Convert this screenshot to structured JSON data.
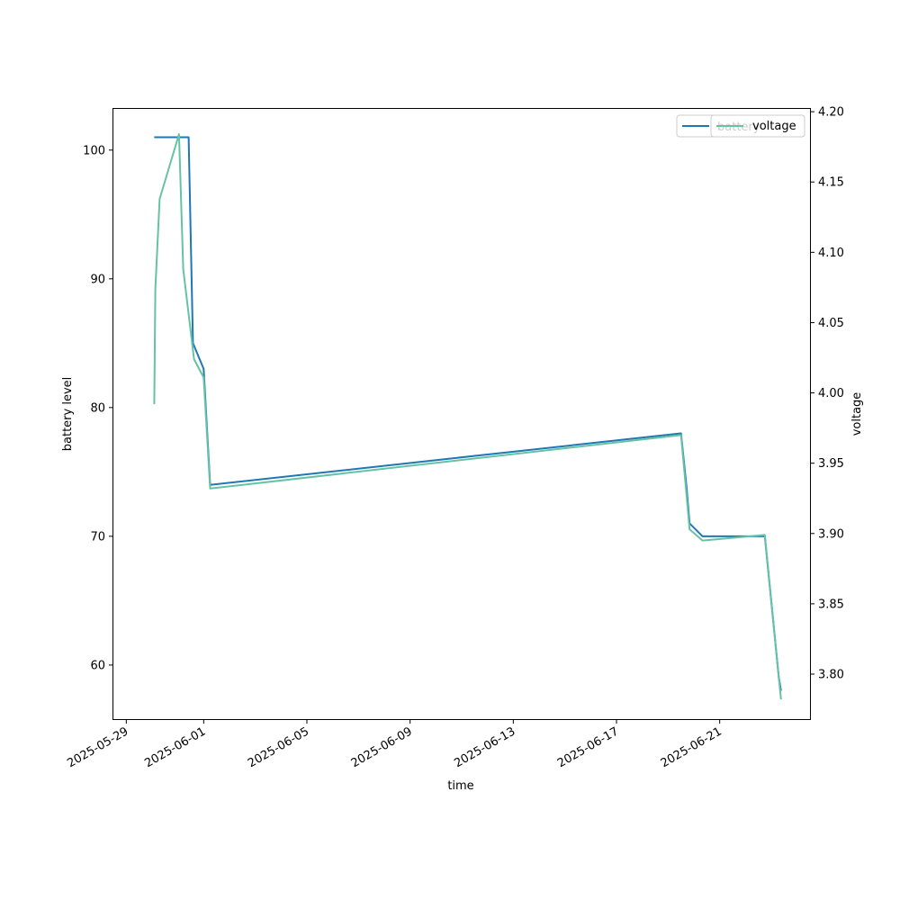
{
  "chart_data": {
    "type": "line",
    "xlabel": "time",
    "ylabel_left": "battery level",
    "ylabel_right": "voltage",
    "xlim": [
      "2025-05-28T12:00",
      "2025-06-24T12:00"
    ],
    "ylim_left": [
      55.8,
      103.2
    ],
    "ylim_right": [
      3.768,
      4.202
    ],
    "x_ticks": [
      "2025-05-29",
      "2025-06-01",
      "2025-06-05",
      "2025-06-09",
      "2025-06-13",
      "2025-06-17",
      "2025-06-21"
    ],
    "y_ticks_left": [
      60,
      70,
      80,
      90,
      100
    ],
    "y_ticks_right": [
      3.8,
      3.85,
      3.9,
      3.95,
      4.0,
      4.05,
      4.1,
      4.15,
      4.2
    ],
    "y_tick_labels_left": [
      "60",
      "70",
      "80",
      "90",
      "100"
    ],
    "y_tick_labels_right": [
      "3.80",
      "3.85",
      "3.90",
      "3.95",
      "4.00",
      "4.05",
      "4.10",
      "4.15",
      "4.20"
    ],
    "legend_position": "top-right",
    "series": [
      {
        "name": "battery",
        "axis": "left",
        "color": "#1f77b4",
        "points": [
          [
            "2025-05-30T02:00",
            101
          ],
          [
            "2025-05-31T10:00",
            101
          ],
          [
            "2025-05-31T14:00",
            85
          ],
          [
            "2025-06-01T00:00",
            83
          ],
          [
            "2025-06-01T06:00",
            74
          ],
          [
            "2025-06-19T12:00",
            78
          ],
          [
            "2025-06-19T17:00",
            74
          ],
          [
            "2025-06-19T20:00",
            71
          ],
          [
            "2025-06-20T08:00",
            70
          ],
          [
            "2025-06-22T18:00",
            70
          ],
          [
            "2025-06-23T07:00",
            59
          ],
          [
            "2025-06-23T09:00",
            58
          ]
        ]
      },
      {
        "name": "voltage",
        "axis": "right",
        "color": "#66c2a5",
        "points": [
          [
            "2025-05-30T02:00",
            3.992
          ],
          [
            "2025-05-30T03:00",
            4.074
          ],
          [
            "2025-05-30T07:00",
            4.138
          ],
          [
            "2025-05-31T01:00",
            4.184
          ],
          [
            "2025-05-31T05:00",
            4.088
          ],
          [
            "2025-05-31T15:00",
            4.024
          ],
          [
            "2025-06-01T00:00",
            4.011
          ],
          [
            "2025-06-01T06:00",
            3.932
          ],
          [
            "2025-06-19T12:00",
            3.97
          ],
          [
            "2025-06-19T17:00",
            3.929
          ],
          [
            "2025-06-19T20:00",
            3.903
          ],
          [
            "2025-06-20T08:00",
            3.895
          ],
          [
            "2025-06-22T18:00",
            3.899
          ],
          [
            "2025-06-23T07:00",
            3.797
          ],
          [
            "2025-06-23T09:00",
            3.782
          ]
        ]
      }
    ]
  }
}
